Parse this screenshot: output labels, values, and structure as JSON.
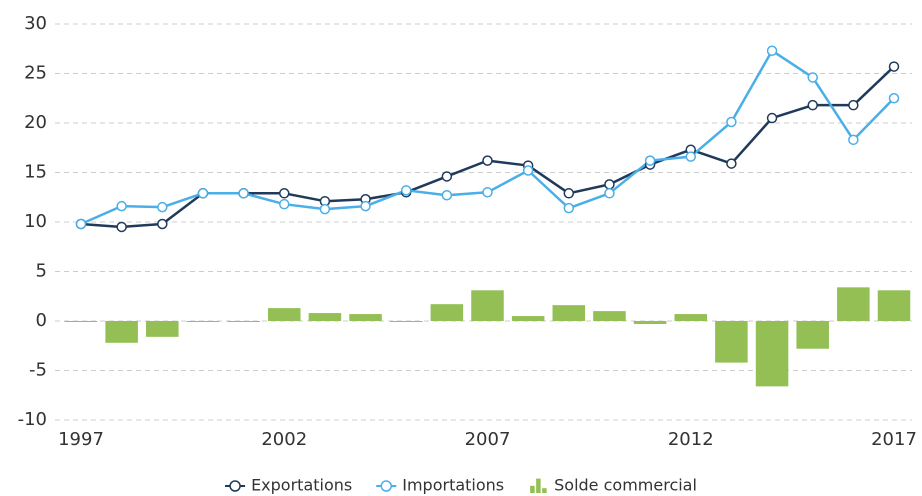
{
  "chart_data": {
    "type": "line",
    "x": [
      1997,
      1998,
      1999,
      2000,
      2001,
      2002,
      2003,
      2004,
      2005,
      2006,
      2007,
      2008,
      2009,
      2010,
      2011,
      2012,
      2013,
      2014,
      2015,
      2016,
      2017
    ],
    "xlim": [
      1997,
      2017
    ],
    "xticks": [
      1997,
      2002,
      2007,
      2012,
      2017
    ],
    "ylim": [
      -10,
      30
    ],
    "yticks": [
      -10,
      -5,
      0,
      5,
      10,
      15,
      20,
      25,
      30
    ],
    "grid": true,
    "legend": "bottom",
    "series": [
      {
        "name": "Exportations",
        "type": "line",
        "color": "#1f3a5a",
        "values": [
          9.8,
          9.5,
          9.8,
          12.9,
          12.9,
          12.9,
          12.1,
          12.3,
          13.0,
          14.6,
          16.2,
          15.7,
          12.9,
          13.8,
          15.8,
          17.3,
          15.9,
          20.5,
          21.8,
          21.8,
          25.7
        ]
      },
      {
        "name": "Importations",
        "type": "line",
        "color": "#4aaee8",
        "values": [
          9.8,
          11.6,
          11.5,
          12.9,
          12.9,
          11.8,
          11.3,
          11.6,
          13.2,
          12.7,
          13.0,
          15.2,
          11.4,
          12.9,
          16.2,
          16.6,
          20.1,
          27.3,
          24.6,
          18.3,
          22.5
        ]
      },
      {
        "name": "Solde commercial",
        "type": "bar",
        "color": "#93bf55",
        "values": [
          -0.1,
          -2.2,
          -1.6,
          -0.1,
          -0.1,
          1.3,
          0.8,
          0.7,
          -0.1,
          1.7,
          3.1,
          0.5,
          1.6,
          1.0,
          -0.3,
          0.7,
          -4.2,
          -6.6,
          -2.8,
          3.4,
          3.1
        ]
      }
    ]
  }
}
